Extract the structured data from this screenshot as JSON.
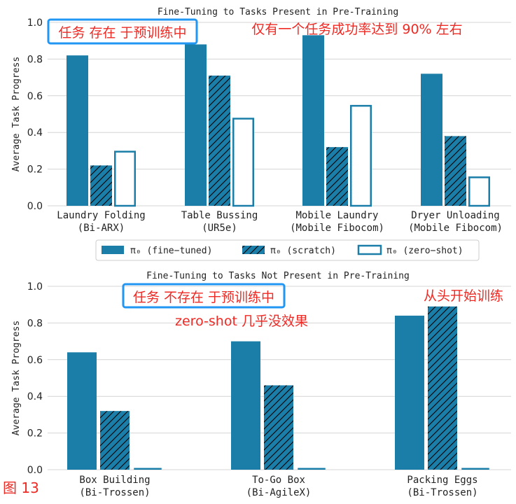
{
  "colors": {
    "fine_tuned": "#1a7ea8",
    "scratch_fill": "#1a7ea8",
    "zero_shot_edge": "#1a7ea8",
    "annotation_red": "#ee2a24",
    "annotation_box": "#2196f3",
    "grid": "#d4d4d4"
  },
  "legend": {
    "fine_tuned": "π₀ (fine−tuned)",
    "scratch": "π₀ (scratch)",
    "zero_shot": "π₀ (zero−shot)"
  },
  "annotations": {
    "top_box": "任务 存在 于预训练中",
    "top_note": "仅有一个任务成功率达到 90% 左右",
    "bottom_box": "任务 不存在 于预训练中",
    "bottom_note": "zero-shot 几乎没效果",
    "bottom_note2": "从头开始训练",
    "figure_label": "图 13"
  },
  "chart_data": [
    {
      "type": "bar",
      "title": "Fine-Tuning to Tasks Present in Pre-Training",
      "ylabel": "Average Task Progress",
      "ylim": [
        0,
        1.0
      ],
      "yticks": [
        "0.0",
        "0.2",
        "0.4",
        "0.6",
        "0.8",
        "1.0"
      ],
      "grid": true,
      "categories": [
        [
          "Laundry Folding",
          "(Bi-ARX)"
        ],
        [
          "Table Bussing",
          "(UR5e)"
        ],
        [
          "Mobile Laundry",
          "(Mobile Fibocom)"
        ],
        [
          "Dryer Unloading",
          "(Mobile Fibocom)"
        ]
      ],
      "series": [
        {
          "name": "π₀ (fine-tuned)",
          "values": [
            0.82,
            0.88,
            0.93,
            0.72
          ]
        },
        {
          "name": "π₀ (scratch)",
          "values": [
            0.22,
            0.71,
            0.32,
            0.38
          ]
        },
        {
          "name": "π₀ (zero-shot)",
          "values": [
            0.3,
            0.48,
            0.55,
            0.16
          ]
        }
      ]
    },
    {
      "type": "bar",
      "title": "Fine-Tuning to Tasks Not Present in Pre-Training",
      "ylabel": "Average Task Progress",
      "ylim": [
        0,
        1.0
      ],
      "yticks": [
        "0.0",
        "0.2",
        "0.4",
        "0.6",
        "0.8",
        "1.0"
      ],
      "grid": true,
      "categories": [
        [
          "Box Building",
          "(Bi-Trossen)"
        ],
        [
          "To-Go Box",
          "(Bi-AgileX)"
        ],
        [
          "Packing Eggs",
          "(Bi-Trossen)"
        ]
      ],
      "series": [
        {
          "name": "π₀ (fine-tuned)",
          "values": [
            0.64,
            0.7,
            0.84
          ]
        },
        {
          "name": "π₀ (scratch)",
          "values": [
            0.32,
            0.46,
            0.89
          ]
        },
        {
          "name": "π₀ (zero-shot)",
          "values": [
            0.0,
            0.0,
            0.0
          ]
        }
      ]
    }
  ]
}
